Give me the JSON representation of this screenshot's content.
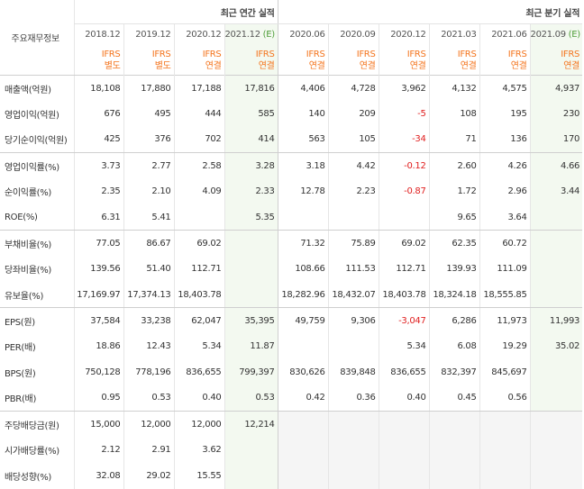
{
  "header": {
    "row_label": "주요재무정보",
    "annual_group": "최근 연간 실적",
    "quarter_group": "최근 분기 실적"
  },
  "columns": [
    {
      "date": "2018.12",
      "ifrs": "IFRS",
      "basis": "별도",
      "estimate": ""
    },
    {
      "date": "2019.12",
      "ifrs": "IFRS",
      "basis": "별도",
      "estimate": ""
    },
    {
      "date": "2020.12",
      "ifrs": "IFRS",
      "basis": "연결",
      "estimate": ""
    },
    {
      "date": "2021.12",
      "ifrs": "IFRS",
      "basis": "연결",
      "estimate": "(E)"
    },
    {
      "date": "2020.06",
      "ifrs": "IFRS",
      "basis": "연결",
      "estimate": ""
    },
    {
      "date": "2020.09",
      "ifrs": "IFRS",
      "basis": "연결",
      "estimate": ""
    },
    {
      "date": "2020.12",
      "ifrs": "IFRS",
      "basis": "연결",
      "estimate": ""
    },
    {
      "date": "2021.03",
      "ifrs": "IFRS",
      "basis": "연결",
      "estimate": ""
    },
    {
      "date": "2021.06",
      "ifrs": "IFRS",
      "basis": "연결",
      "estimate": ""
    },
    {
      "date": "2021.09",
      "ifrs": "IFRS",
      "basis": "연결",
      "estimate": "(E)"
    }
  ],
  "rows": [
    {
      "label": "매출액(억원)",
      "values": [
        "18,108",
        "17,880",
        "17,188",
        "17,816",
        "4,406",
        "4,728",
        "3,962",
        "4,132",
        "4,575",
        "4,937"
      ]
    },
    {
      "label": "영업이익(억원)",
      "values": [
        "676",
        "495",
        "444",
        "585",
        "140",
        "209",
        "-5",
        "108",
        "195",
        "230"
      ]
    },
    {
      "label": "당기순이익(억원)",
      "values": [
        "425",
        "376",
        "702",
        "414",
        "563",
        "105",
        "-34",
        "71",
        "136",
        "170"
      ]
    },
    {
      "label": "영업이익률(%)",
      "values": [
        "3.73",
        "2.77",
        "2.58",
        "3.28",
        "3.18",
        "4.42",
        "-0.12",
        "2.60",
        "4.26",
        "4.66"
      ]
    },
    {
      "label": "순이익률(%)",
      "values": [
        "2.35",
        "2.10",
        "4.09",
        "2.33",
        "12.78",
        "2.23",
        "-0.87",
        "1.72",
        "2.96",
        "3.44"
      ]
    },
    {
      "label": "ROE(%)",
      "values": [
        "6.31",
        "5.41",
        "",
        "5.35",
        "",
        "",
        "",
        "9.65",
        "3.64",
        ""
      ]
    },
    {
      "label": "부채비율(%)",
      "values": [
        "77.05",
        "86.67",
        "69.02",
        "",
        "71.32",
        "75.89",
        "69.02",
        "62.35",
        "60.72",
        ""
      ]
    },
    {
      "label": "당좌비율(%)",
      "values": [
        "139.56",
        "51.40",
        "112.71",
        "",
        "108.66",
        "111.53",
        "112.71",
        "139.93",
        "111.09",
        ""
      ]
    },
    {
      "label": "유보율(%)",
      "values": [
        "17,169.97",
        "17,374.13",
        "18,403.78",
        "",
        "18,282.96",
        "18,432.07",
        "18,403.78",
        "18,324.18",
        "18,555.85",
        ""
      ]
    },
    {
      "label": "EPS(원)",
      "values": [
        "37,584",
        "33,238",
        "62,047",
        "35,395",
        "49,759",
        "9,306",
        "-3,047",
        "6,286",
        "11,973",
        "11,993"
      ]
    },
    {
      "label": "PER(배)",
      "values": [
        "18.86",
        "12.43",
        "5.34",
        "11.87",
        "",
        "",
        "5.34",
        "6.08",
        "19.29",
        "35.02"
      ]
    },
    {
      "label": "BPS(원)",
      "values": [
        "750,128",
        "778,196",
        "836,655",
        "799,397",
        "830,626",
        "839,848",
        "836,655",
        "832,397",
        "845,697",
        ""
      ]
    },
    {
      "label": "PBR(배)",
      "values": [
        "0.95",
        "0.53",
        "0.40",
        "0.53",
        "0.42",
        "0.36",
        "0.40",
        "0.45",
        "0.56",
        ""
      ]
    },
    {
      "label": "주당배당금(원)",
      "values": [
        "15,000",
        "12,000",
        "12,000",
        "12,214",
        "",
        "",
        "",
        "",
        "",
        ""
      ]
    },
    {
      "label": "시가배당률(%)",
      "values": [
        "2.12",
        "2.91",
        "3.62",
        "",
        "",
        "",
        "",
        "",
        "",
        ""
      ]
    },
    {
      "label": "배당성향(%)",
      "values": [
        "32.08",
        "29.02",
        "15.55",
        "",
        "",
        "",
        "",
        "",
        "",
        ""
      ]
    }
  ]
}
